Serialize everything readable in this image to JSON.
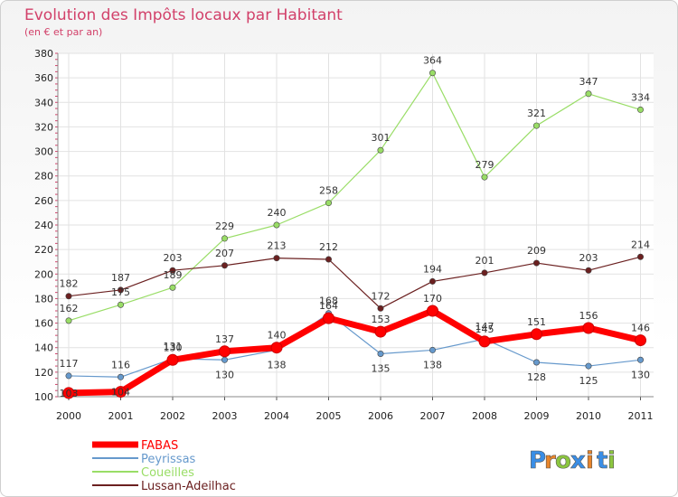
{
  "chart_data": {
    "type": "line",
    "title": "Evolution des Impôts locaux par Habitant",
    "subtitle": "(en € et par an)",
    "categories": [
      "2000",
      "2001",
      "2002",
      "2003",
      "2004",
      "2005",
      "2006",
      "2007",
      "2008",
      "2009",
      "2010",
      "2011"
    ],
    "ylim": [
      100,
      380
    ],
    "yticks": [
      100,
      120,
      140,
      160,
      180,
      200,
      220,
      240,
      260,
      280,
      300,
      320,
      340,
      360,
      380
    ],
    "grid": true,
    "legend_position": "bottom-left",
    "series": [
      {
        "name": "FABAS",
        "color": "#ff0000",
        "values": [
          103,
          104,
          130,
          137,
          140,
          164,
          153,
          170,
          145,
          151,
          156,
          146
        ],
        "labels": [
          "103",
          "104",
          "130",
          "137",
          "140",
          "164",
          "153",
          "170",
          "145",
          "151",
          "156",
          "146"
        ]
      },
      {
        "name": "Peyrissas",
        "color": "#6699cc",
        "values": [
          117,
          116,
          131,
          130,
          138,
          168,
          135,
          138,
          147,
          128,
          125,
          130
        ],
        "labels": [
          "117",
          "116",
          "131",
          "130",
          "138",
          "168",
          "135",
          "138",
          "147",
          "128",
          "125",
          "130"
        ]
      },
      {
        "name": "Coueilles",
        "color": "#99dd66",
        "values": [
          162,
          175,
          189,
          229,
          240,
          258,
          301,
          364,
          279,
          321,
          347,
          334
        ],
        "labels": [
          "162",
          "175",
          "189",
          "229",
          "240",
          "258",
          "301",
          "364",
          "279",
          "321",
          "347",
          "334"
        ]
      },
      {
        "name": "Lussan-Adeilhac",
        "color": "#6b2020",
        "values": [
          182,
          187,
          203,
          207,
          213,
          212,
          172,
          194,
          201,
          209,
          203,
          214
        ],
        "labels": [
          "182",
          "187",
          "203",
          "207",
          "213",
          "212",
          "172",
          "194",
          "201",
          "209",
          "203",
          "214"
        ]
      }
    ]
  },
  "brand": {
    "letters": [
      "P",
      "r",
      "o",
      "x",
      "i",
      "t",
      "i"
    ],
    "colors": [
      "#3a8ee6",
      "#e8852a",
      "#8cc63f",
      "#3a8ee6",
      "#e8852a",
      "#3a8ee6",
      "#8cc63f"
    ]
  }
}
